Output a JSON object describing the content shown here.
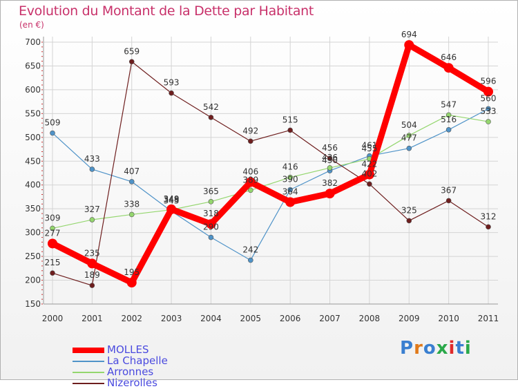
{
  "header": {
    "title": "Evolution du Montant de la Dette par Habitant",
    "subtitle": "(en €)"
  },
  "brand": {
    "logo_text": "Proxiti"
  },
  "chart_data": {
    "type": "line",
    "title": "Evolution du Montant de la Dette par Habitant",
    "subtitle": "(en €)",
    "x": [
      "2000",
      "2001",
      "2002",
      "2003",
      "2004",
      "2005",
      "2006",
      "2007",
      "2008",
      "2009",
      "2010",
      "2011"
    ],
    "ylim": [
      150,
      700
    ],
    "yticks": [
      150,
      200,
      250,
      300,
      350,
      400,
      450,
      500,
      550,
      600,
      650,
      700
    ],
    "grid": true,
    "legend": "bottom-left",
    "series": [
      {
        "name": "MOLLES",
        "color": "#ff0000",
        "values": [
          277,
          235,
          195,
          349,
          318,
          406,
          364,
          382,
          422,
          694,
          646,
          596
        ]
      },
      {
        "name": "La Chapelle",
        "color": "#4f93c8",
        "values": [
          509,
          433,
          407,
          345,
          290,
          242,
          390,
          430,
          461,
          477,
          516,
          560
        ]
      },
      {
        "name": "Arronnes",
        "color": "#94d66e",
        "values": [
          309,
          327,
          338,
          348,
          365,
          389,
          416,
          436,
          455,
          504,
          547,
          533
        ]
      },
      {
        "name": "Nizerolles",
        "color": "#6e1e1e",
        "values": [
          215,
          189,
          659,
          593,
          542,
          492,
          515,
          456,
          402,
          325,
          367,
          312
        ]
      }
    ]
  }
}
